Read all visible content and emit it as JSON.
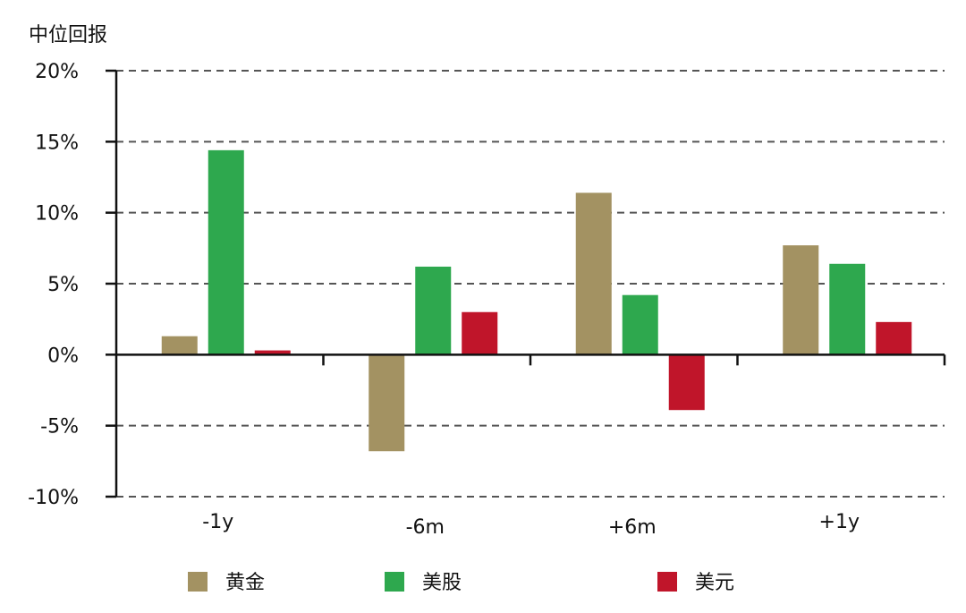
{
  "chart_data": {
    "type": "bar",
    "ylabel": "中位回报",
    "categories": [
      "-1y",
      "-6m",
      "+6m",
      "+1y"
    ],
    "series": [
      {
        "name": "黄金",
        "color": "#A39262",
        "values": [
          1.3,
          -6.8,
          11.4,
          7.7
        ]
      },
      {
        "name": "美股",
        "color": "#2EA84E",
        "values": [
          14.4,
          6.2,
          4.2,
          6.4
        ]
      },
      {
        "name": "美元",
        "color": "#C0152A",
        "values": [
          0.3,
          3.0,
          -3.9,
          2.3
        ]
      }
    ],
    "ylim": [
      -10,
      20
    ],
    "yticks": [
      -10,
      -5,
      0,
      5,
      10,
      15,
      20
    ],
    "ytick_labels": [
      "-10%",
      "-5%",
      "0%",
      "5%",
      "10%",
      "15%",
      "20%"
    ],
    "grid": true,
    "legend_position": "bottom"
  }
}
